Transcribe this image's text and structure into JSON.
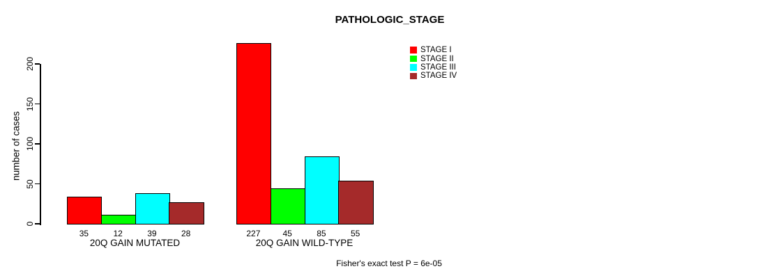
{
  "header": {
    "title": "PATHOLOGIC_STAGE"
  },
  "axes": {
    "y_label": "number of cases"
  },
  "footer": {
    "annotation": "Fisher's exact test P = 6e-05"
  },
  "chart_data": {
    "type": "bar",
    "title": "PATHOLOGIC_STAGE",
    "xlabel": "",
    "ylabel": "number of cases",
    "ylim": [
      0,
      230
    ],
    "yticks": [
      0,
      50,
      100,
      150,
      200
    ],
    "grid": false,
    "legend_position": "top-right",
    "categories": [
      "20Q GAIN MUTATED",
      "20Q GAIN WILD-TYPE"
    ],
    "series": [
      {
        "name": "STAGE I",
        "color": "#ff0000",
        "values": [
          35,
          227
        ]
      },
      {
        "name": "STAGE II",
        "color": "#00ff00",
        "values": [
          12,
          45
        ]
      },
      {
        "name": "STAGE III",
        "color": "#00ffff",
        "values": [
          39,
          85
        ]
      },
      {
        "name": "STAGE IV",
        "color": "#a52a2a",
        "values": [
          28,
          55
        ]
      }
    ],
    "bar_value_labels": true,
    "annotation": "Fisher's exact test P = 6e-05"
  }
}
